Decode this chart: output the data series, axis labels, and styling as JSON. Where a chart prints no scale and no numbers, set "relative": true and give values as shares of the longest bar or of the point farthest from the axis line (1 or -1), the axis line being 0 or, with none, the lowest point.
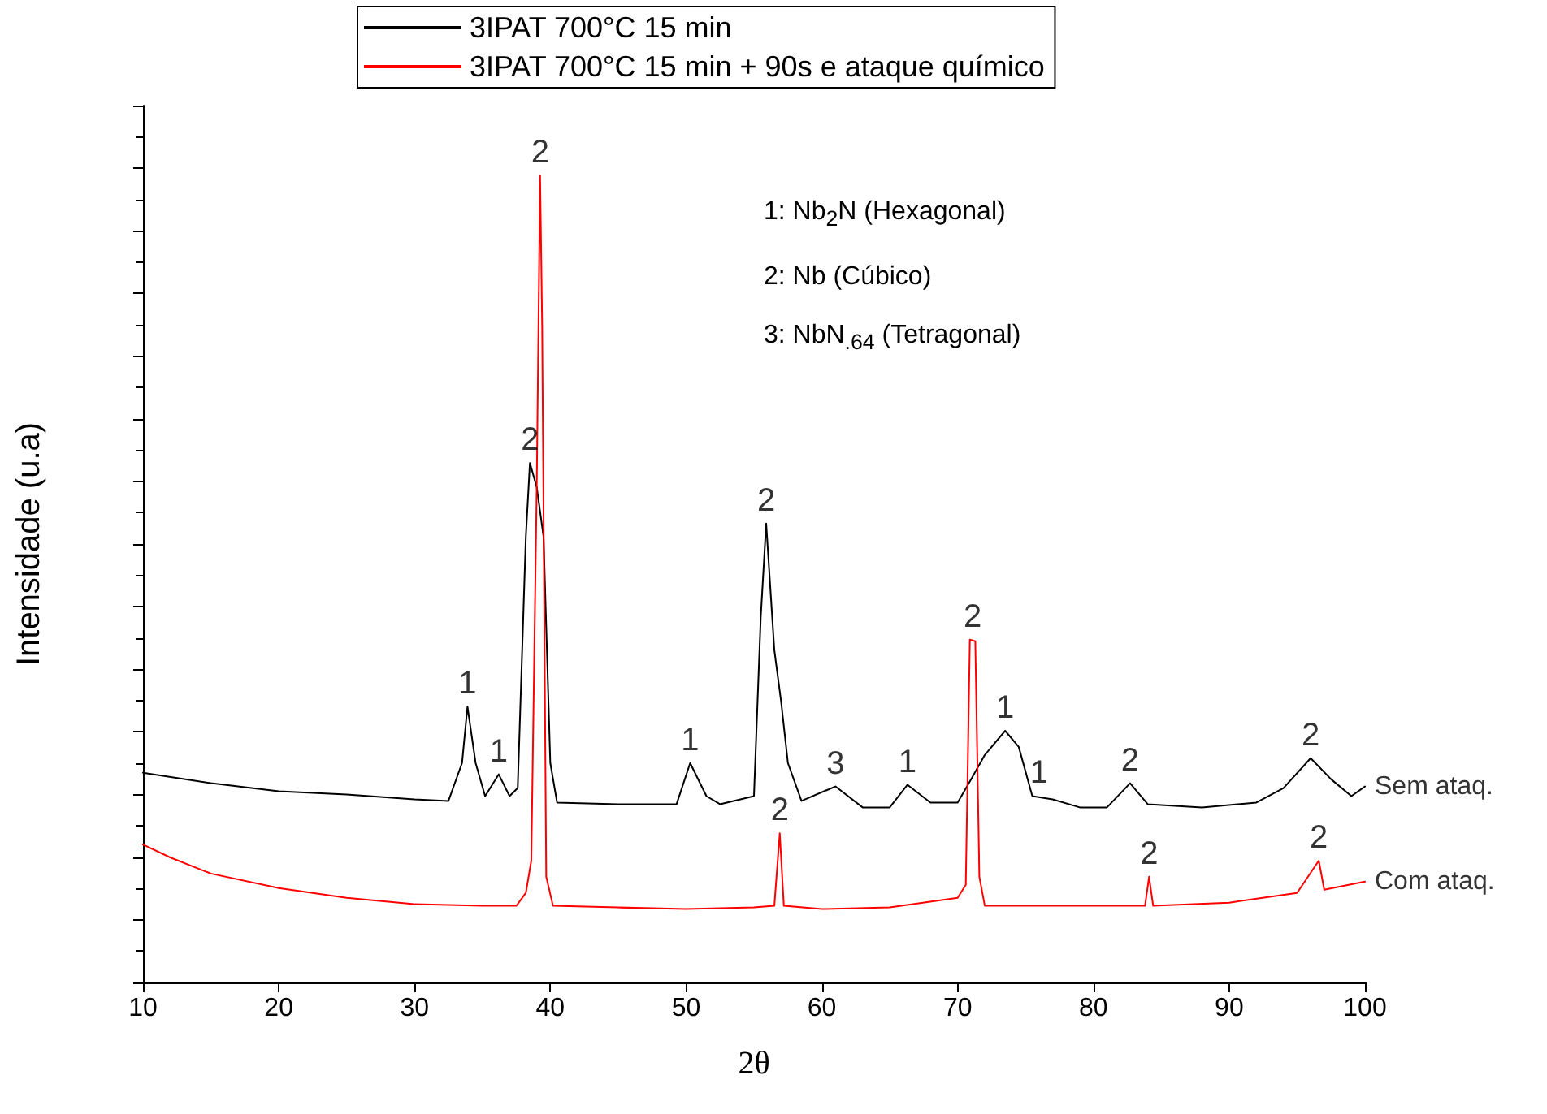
{
  "chart_data": {
    "type": "line",
    "relative": true,
    "xlabel": "2θ",
    "ylabel": "Intensidade (u.a)",
    "xlim": [
      10,
      100
    ],
    "xticks": [
      10,
      20,
      30,
      40,
      50,
      60,
      70,
      80,
      90,
      100
    ],
    "tick_labels": "x",
    "legend": "top",
    "grid": false,
    "marker": "none",
    "line_style": "solid",
    "series": [
      {
        "name": "3IPAT 700°C 15 min",
        "color": "#000000",
        "x": [
          10,
          15,
          20,
          25,
          30,
          32.5,
          33.5,
          33.9,
          34.5,
          35.2,
          36.2,
          37,
          37.6,
          38.2,
          38.5,
          39,
          39.5,
          40,
          40.5,
          45,
          49.3,
          50.3,
          51.5,
          52.5,
          55,
          55.5,
          55.9,
          56.5,
          57,
          57.5,
          58.5,
          61,
          63,
          65,
          66.3,
          68,
          70,
          71,
          72,
          73.5,
          74.5,
          75.5,
          77,
          79,
          81,
          82.7,
          84,
          88,
          92,
          94,
          96,
          97.5,
          99,
          100
        ],
        "values": [
          0.26,
          0.247,
          0.237,
          0.233,
          0.227,
          0.225,
          0.272,
          0.342,
          0.272,
          0.231,
          0.258,
          0.231,
          0.241,
          0.553,
          0.644,
          0.614,
          0.553,
          0.272,
          0.223,
          0.221,
          0.221,
          0.272,
          0.231,
          0.221,
          0.231,
          0.453,
          0.569,
          0.412,
          0.348,
          0.272,
          0.225,
          0.243,
          0.217,
          0.217,
          0.245,
          0.223,
          0.223,
          0.252,
          0.282,
          0.312,
          0.292,
          0.231,
          0.227,
          0.217,
          0.217,
          0.247,
          0.221,
          0.217,
          0.223,
          0.241,
          0.278,
          0.252,
          0.231,
          0.243
        ]
      },
      {
        "name": "3IPAT 700°C 15 min + 90s e ataque químico",
        "color": "#ff0000",
        "x": [
          10,
          12,
          15,
          20,
          25,
          30,
          35,
          37.5,
          38.2,
          38.6,
          39,
          39.25,
          39.4,
          39.7,
          40.2,
          45,
          50,
          55,
          56.5,
          56.9,
          57.2,
          60,
          65,
          70,
          70.6,
          70.9,
          71.3,
          71.6,
          72,
          76,
          80,
          83.8,
          84.1,
          84.4,
          90,
          95,
          96.6,
          97,
          100
        ],
        "values": [
          0.171,
          0.155,
          0.135,
          0.117,
          0.105,
          0.097,
          0.095,
          0.095,
          0.111,
          0.151,
          0.614,
          1,
          0.815,
          0.131,
          0.095,
          0.093,
          0.091,
          0.093,
          0.095,
          0.185,
          0.095,
          0.091,
          0.093,
          0.105,
          0.121,
          0.425,
          0.423,
          0.131,
          0.095,
          0.095,
          0.095,
          0.095,
          0.131,
          0.095,
          0.099,
          0.111,
          0.151,
          0.115,
          0.125
        ]
      }
    ],
    "annotations": [
      {
        "text": "1",
        "x": 33.9,
        "y": 0.342
      },
      {
        "text": "1",
        "x": 36.2,
        "y": 0.258
      },
      {
        "text": "2",
        "x": 38.5,
        "y": 0.644
      },
      {
        "text": "1",
        "x": 50.3,
        "y": 0.272
      },
      {
        "text": "2",
        "x": 55.9,
        "y": 0.569
      },
      {
        "text": "3",
        "x": 61,
        "y": 0.243
      },
      {
        "text": "1",
        "x": 66.3,
        "y": 0.245
      },
      {
        "text": "1",
        "x": 73.5,
        "y": 0.312
      },
      {
        "text": "1",
        "x": 76,
        "y": 0.231
      },
      {
        "text": "2",
        "x": 82.7,
        "y": 0.247
      },
      {
        "text": "2",
        "x": 96,
        "y": 0.278
      },
      {
        "text": "2",
        "x": 39.25,
        "y": 1
      },
      {
        "text": "2",
        "x": 56.9,
        "y": 0.185
      },
      {
        "text": "2",
        "x": 71.1,
        "y": 0.425
      },
      {
        "text": "2",
        "x": 84.1,
        "y": 0.131
      },
      {
        "text": "2",
        "x": 96.6,
        "y": 0.151
      },
      {
        "text": "Sem ataq.",
        "x": 100,
        "y": 0.243
      },
      {
        "text": "Com ataq.",
        "x": 100,
        "y": 0.125
      },
      "1: Nb$_{2}$N (Hexagonal)",
      "2: Nb (Cúbico)",
      "3: NbN$_{.64}$ (Tetragonal)"
    ]
  }
}
